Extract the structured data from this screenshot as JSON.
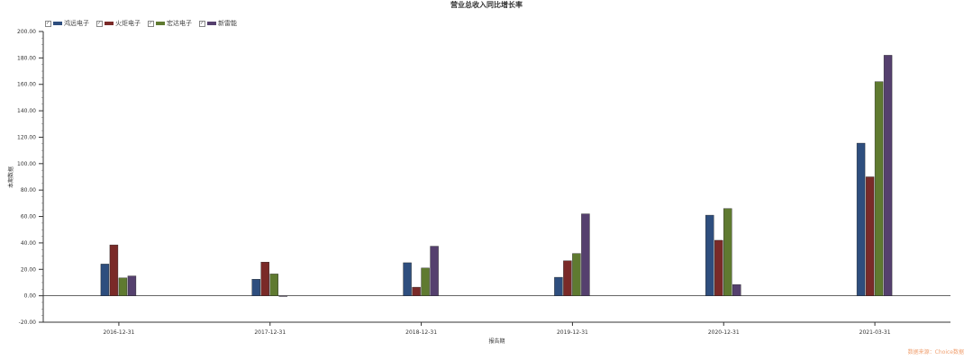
{
  "chart_data": {
    "type": "bar",
    "title": "营业总收入同比增长率",
    "xlabel": "报告期",
    "ylabel": "本期数据",
    "ylim": [
      -20,
      200
    ],
    "yticks": [
      "-20.00",
      "0.00",
      "20.00",
      "40.00",
      "60.00",
      "80.00",
      "100.00",
      "120.00",
      "140.00",
      "160.00",
      "180.00",
      "200.00"
    ],
    "categories": [
      "2016-12-31",
      "2017-12-31",
      "2018-12-31",
      "2019-12-31",
      "2020-12-31",
      "2021-03-31"
    ],
    "legend_position": "top-left",
    "series": [
      {
        "name": "鸿远电子",
        "color": "#2e4e7e",
        "values": [
          24,
          12.5,
          25,
          14,
          61,
          115.5
        ]
      },
      {
        "name": "火炬电子",
        "color": "#7a2a28",
        "values": [
          38.5,
          25.5,
          6.5,
          26.5,
          42,
          90
        ]
      },
      {
        "name": "宏达电子",
        "color": "#5f7a30",
        "values": [
          13.5,
          16.5,
          21,
          32,
          66,
          162
        ]
      },
      {
        "name": "新雷能",
        "color": "#55406e",
        "values": [
          15,
          -0.5,
          37.5,
          62,
          8.5,
          182
        ]
      }
    ]
  },
  "watermark": "数据来源：Choice数据"
}
